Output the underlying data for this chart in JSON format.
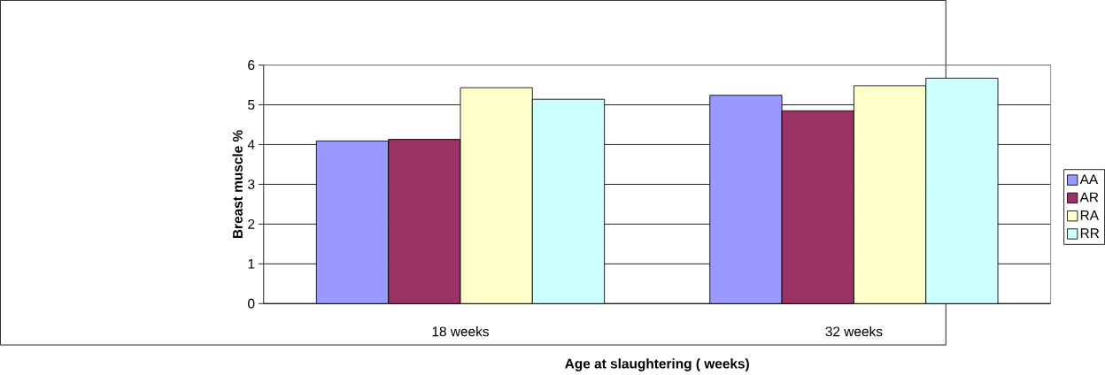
{
  "chart_data": {
    "type": "bar",
    "xlabel": "Age at slaughtering ( weeks)",
    "ylabel": "Breast muscle %",
    "categories": [
      "18 weeks",
      "32 weeks"
    ],
    "series": [
      {
        "name": "AA",
        "color": "#9999ff",
        "values": [
          4.09,
          5.24
        ]
      },
      {
        "name": "AR",
        "color": "#993366",
        "values": [
          4.13,
          4.85
        ]
      },
      {
        "name": "RA",
        "color": "#ffffcc",
        "values": [
          5.43,
          5.48
        ]
      },
      {
        "name": "RR",
        "color": "#ccffff",
        "values": [
          5.14,
          5.67
        ]
      }
    ],
    "ylim": [
      0,
      6
    ],
    "yticks": [
      0,
      1,
      2,
      3,
      4,
      5,
      6
    ],
    "grid": "y",
    "legend": "right"
  }
}
